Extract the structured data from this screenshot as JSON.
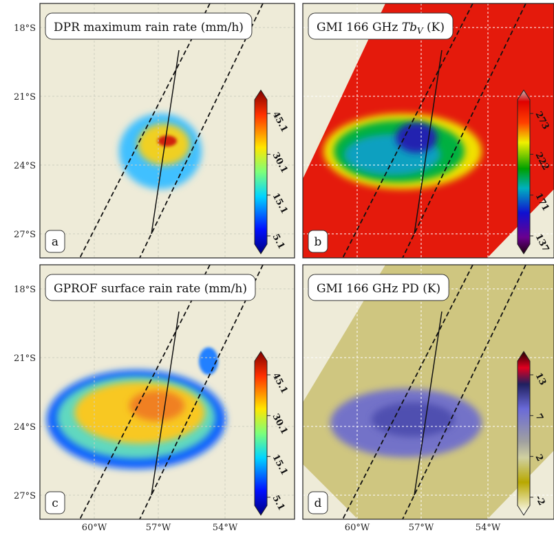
{
  "y_axis_labels": [
    "18°S",
    "21°S",
    "24°S",
    "27°S"
  ],
  "x_axis_labels": [
    "60°W",
    "57°W",
    "54°W"
  ],
  "panels": [
    {
      "title_parts": [
        "DPR maximum rain rate (mm/h)"
      ],
      "letter": "a",
      "colorbar_ticks": [
        "45.1",
        "30.1",
        "15.1",
        "5.1"
      ]
    },
    {
      "title_parts": [
        "GMI 166 GHz ",
        "Tb",
        "V",
        " (K)"
      ],
      "letter": "b",
      "colorbar_ticks": [
        "273",
        "222",
        "171",
        "137"
      ]
    },
    {
      "title_parts": [
        "GPROF surface rain rate (mm/h)"
      ],
      "letter": "c",
      "colorbar_ticks": [
        "45.1",
        "30.1",
        "15.1",
        "5.1"
      ]
    },
    {
      "title_parts": [
        "GMI 166 GHz PD (K)"
      ],
      "letter": "d",
      "colorbar_ticks": [
        "13",
        "7",
        "2",
        "-2"
      ]
    }
  ]
}
